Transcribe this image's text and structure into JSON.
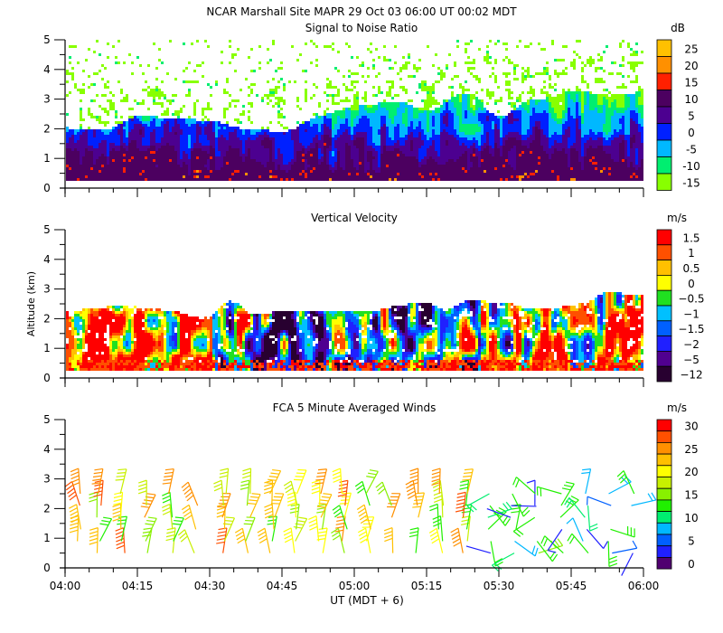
{
  "header": {
    "title": "NCAR Marshall Site   MAPR 29 Oct 03   06:00 UT   00:02   MDT"
  },
  "x_axis": {
    "label": "UT  (MDT + 6)",
    "ticks": [
      "04:00",
      "04:15",
      "04:30",
      "04:45",
      "05:00",
      "05:15",
      "05:30",
      "05:45",
      "06:00"
    ]
  },
  "chart_data": [
    {
      "type": "heatmap",
      "title": "Signal to Noise Ratio",
      "xlabel": "UT  (MDT + 6)",
      "ylabel": "",
      "xlim": [
        "04:00",
        "06:00"
      ],
      "ylim": [
        0,
        5
      ],
      "yticks": [
        "0",
        "1",
        "2",
        "3",
        "4",
        "5"
      ],
      "colorbar": {
        "unit": "dB",
        "labels": [
          "25",
          "20",
          "15",
          "10",
          "5",
          "0",
          "-5",
          "-10",
          "-15"
        ],
        "colors": [
          "#ffc000",
          "#ff9000",
          "#ff2000",
          "#4c0060",
          "#4c0090",
          "#0020ff",
          "#00b8ff",
          "#00ee70",
          "#88ff00"
        ]
      }
    },
    {
      "type": "heatmap",
      "title": "Vertical Velocity",
      "xlabel": "UT  (MDT + 6)",
      "ylabel": "Altitude (km)",
      "xlim": [
        "04:00",
        "06:00"
      ],
      "ylim": [
        0,
        5
      ],
      "yticks": [
        "0",
        "1",
        "2",
        "3",
        "4",
        "5"
      ],
      "colorbar": {
        "unit": "m/s",
        "labels": [
          "1.5",
          "1",
          "0.5",
          "0",
          "−0.5",
          "−1",
          "−1.5",
          "−2",
          "−5",
          "−12"
        ],
        "colors": [
          "#ff0000",
          "#ff5000",
          "#ffc000",
          "#ffff00",
          "#20e020",
          "#00c0ff",
          "#0060ff",
          "#2020ff",
          "#500090",
          "#280030"
        ]
      }
    },
    {
      "type": "scatter",
      "title": "FCA 5 Minute Averaged Winds",
      "xlabel": "UT  (MDT + 6)",
      "ylabel": "",
      "xlim": [
        "04:00",
        "06:00"
      ],
      "ylim": [
        0,
        5
      ],
      "yticks": [
        "0",
        "1",
        "2",
        "3",
        "4",
        "5"
      ],
      "colorbar": {
        "unit": "m/s",
        "labels": [
          "30",
          "25",
          "20",
          "15",
          "10",
          "5",
          "0"
        ],
        "colors": [
          "#ff0000",
          "#ff5000",
          "#ff9000",
          "#ffc000",
          "#ffff00",
          "#c8f000",
          "#88f000",
          "#20f000",
          "#00ee70",
          "#00b8ff",
          "#0060ff",
          "#2020ff",
          "#500070"
        ]
      },
      "barb_times_min": [
        3,
        7,
        12,
        17,
        22,
        27,
        33,
        38,
        43,
        48,
        53,
        58,
        63,
        68,
        73,
        78,
        83,
        88,
        93,
        98,
        103,
        108,
        113,
        118
      ],
      "barb_altitudes_km": [
        0.5,
        0.9,
        1.3,
        1.7,
        2.1,
        2.5
      ]
    }
  ]
}
